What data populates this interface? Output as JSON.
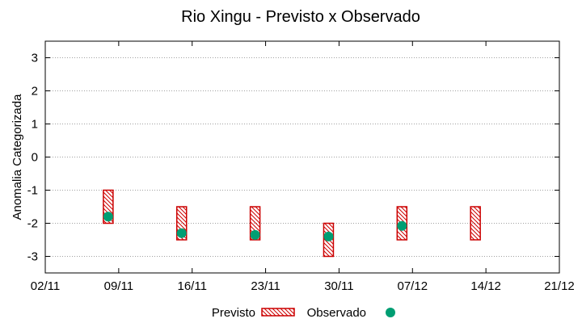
{
  "chart_data": {
    "type": "range-and-scatter",
    "title": "Rio Xingu - Previsto x Observado",
    "xlabel": "",
    "ylabel": "Anomalia Categorizada",
    "x_ticks": [
      "02/11",
      "09/11",
      "16/11",
      "23/11",
      "30/11",
      "07/12",
      "14/12",
      "21/12"
    ],
    "x_range_days": [
      0,
      49
    ],
    "ylim": [
      -3.5,
      3.5
    ],
    "y_ticks": [
      3,
      2,
      1,
      0,
      -1,
      -2,
      -3
    ],
    "grid": "horizontal dotted",
    "legend_position": "bottom-center",
    "series": [
      {
        "name": "Previsto",
        "kind": "range-box",
        "points": [
          {
            "day": 6,
            "low": -2.0,
            "high": -1.0
          },
          {
            "day": 13,
            "low": -2.5,
            "high": -1.5
          },
          {
            "day": 20,
            "low": -2.5,
            "high": -1.5
          },
          {
            "day": 27,
            "low": -3.0,
            "high": -2.0
          },
          {
            "day": 34,
            "low": -2.5,
            "high": -1.5
          },
          {
            "day": 41,
            "low": -2.5,
            "high": -1.5
          }
        ]
      },
      {
        "name": "Observado",
        "kind": "scatter",
        "points": [
          {
            "day": 6,
            "value": -1.8
          },
          {
            "day": 13,
            "value": -2.3
          },
          {
            "day": 20,
            "value": -2.35
          },
          {
            "day": 27,
            "value": -2.4
          },
          {
            "day": 34,
            "value": -2.08
          }
        ]
      }
    ],
    "colors": {
      "previsto": "#cc0000",
      "observado": "#009e73",
      "grid": "#a0a0a0",
      "axis": "#000000"
    }
  }
}
